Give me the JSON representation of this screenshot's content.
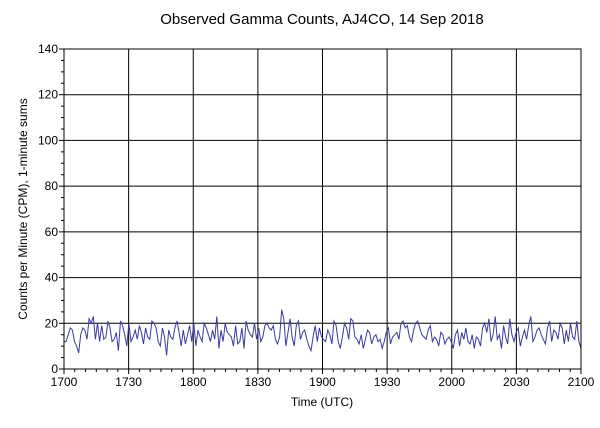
{
  "chart_data": {
    "type": "line",
    "title": "Observed Gamma Counts, AJ4CO, 14 Sep 2018",
    "xlabel": "Time (UTC)",
    "ylabel": "Counts per Minute (CPM), 1-minute sums",
    "x_tick_labels": [
      "1700",
      "1730",
      "1800",
      "1830",
      "1900",
      "1930",
      "2000",
      "2030",
      "2100"
    ],
    "y_ticks": [
      0,
      20,
      40,
      60,
      80,
      100,
      120,
      140
    ],
    "xlim_minutes_since_1700": [
      0,
      240
    ],
    "ylim": [
      0,
      140
    ],
    "grid": true,
    "line_color": "#3a3aa0",
    "series": [
      {
        "values": [
          12,
          12,
          15,
          18,
          17,
          12,
          10,
          7,
          15,
          18,
          17,
          13,
          22,
          20,
          23,
          13,
          20,
          12,
          19,
          13,
          14,
          21,
          18,
          12,
          13,
          16,
          8,
          21,
          19,
          15,
          10,
          20,
          12,
          14,
          17,
          13,
          19,
          16,
          11,
          18,
          14,
          13,
          21,
          20,
          18,
          12,
          10,
          18,
          14,
          6,
          17,
          14,
          13,
          18,
          21,
          16,
          10,
          17,
          11,
          15,
          19,
          12,
          20,
          10,
          17,
          14,
          12,
          20,
          18,
          15,
          12,
          17,
          13,
          23,
          9,
          17,
          12,
          20,
          16,
          15,
          14,
          10,
          19,
          11,
          12,
          18,
          9,
          21,
          17,
          15,
          14,
          20,
          13,
          18,
          12,
          14,
          19,
          20,
          18,
          17,
          19,
          13,
          11,
          14,
          26,
          22,
          10,
          16,
          22,
          14,
          10,
          19,
          21,
          13,
          16,
          17,
          13,
          10,
          8,
          14,
          19,
          12,
          18,
          14,
          13,
          12,
          17,
          15,
          11,
          21,
          19,
          12,
          9,
          14,
          20,
          18,
          13,
          22,
          21,
          14,
          13,
          11,
          15,
          9,
          13,
          17,
          16,
          11,
          14,
          15,
          12,
          13,
          9,
          12,
          16,
          18,
          11,
          14,
          15,
          16,
          13,
          20,
          21,
          18,
          19,
          14,
          12,
          17,
          20,
          21,
          18,
          15,
          14,
          13,
          17,
          19,
          12,
          14,
          13,
          10,
          16,
          15,
          11,
          13,
          14,
          12,
          9,
          15,
          17,
          10,
          16,
          13,
          18,
          12,
          11,
          15,
          9,
          14,
          13,
          10,
          18,
          20,
          16,
          22,
          12,
          15,
          23,
          13,
          15,
          9,
          19,
          14,
          11,
          22,
          15,
          12,
          16,
          18,
          10,
          14,
          17,
          13,
          19,
          23,
          12,
          14,
          17,
          18,
          15,
          13,
          11,
          18,
          21,
          12,
          17,
          16,
          13,
          20,
          18,
          11,
          17,
          12,
          20,
          14,
          13,
          21,
          12,
          9
        ]
      }
    ]
  }
}
